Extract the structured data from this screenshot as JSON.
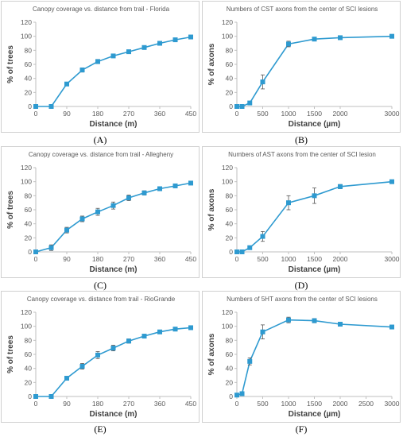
{
  "chart_data": [
    {
      "panel": "(A)",
      "type": "line",
      "title": "Canopy coverage vs. distance from trail - Florida",
      "xlabel": "Distance (m)",
      "ylabel": "% of trees",
      "xlim": [
        0,
        450
      ],
      "ylim": [
        0,
        120
      ],
      "xticks": [
        0,
        90,
        180,
        270,
        360,
        450
      ],
      "yticks": [
        0,
        20,
        40,
        60,
        80,
        100,
        120
      ],
      "grid": false,
      "color": "#2e9ad0",
      "series": [
        {
          "x": [
            0,
            45,
            90,
            135,
            180,
            225,
            270,
            315,
            360,
            405,
            450
          ],
          "y": [
            0,
            0,
            32,
            52,
            64,
            72,
            78,
            84,
            90,
            95,
            99
          ],
          "err": [
            0,
            0,
            2,
            3,
            3,
            2,
            2,
            2,
            2,
            2,
            1
          ]
        }
      ]
    },
    {
      "panel": "(B)",
      "type": "line",
      "title": "Numbers of CST axons from the center of SCI lesions",
      "xlabel": "Distance (µm)",
      "ylabel": "% of axons",
      "xlim": [
        0,
        3000
      ],
      "ylim": [
        0,
        120
      ],
      "xticks": [
        0,
        500,
        1000,
        1500,
        2000,
        3000
      ],
      "yticks": [
        0,
        20,
        40,
        60,
        80,
        100,
        120
      ],
      "grid": false,
      "color": "#2e9ad0",
      "series": [
        {
          "x": [
            0,
            100,
            250,
            500,
            1000,
            1500,
            2000,
            3000
          ],
          "y": [
            0,
            0,
            5,
            35,
            89,
            96,
            98,
            100
          ],
          "err": [
            0,
            0,
            2,
            10,
            4,
            2,
            1,
            0
          ]
        }
      ]
    },
    {
      "panel": "(C)",
      "type": "line",
      "title": "Canopy coverage vs. distance from trail - Allegheny",
      "xlabel": "Distance (m)",
      "ylabel": "% of trees",
      "xlim": [
        0,
        450
      ],
      "ylim": [
        0,
        120
      ],
      "xticks": [
        0,
        90,
        180,
        270,
        360,
        450
      ],
      "yticks": [
        0,
        20,
        40,
        60,
        80,
        100,
        120
      ],
      "grid": false,
      "color": "#2e9ad0",
      "series": [
        {
          "x": [
            0,
            45,
            90,
            135,
            180,
            225,
            270,
            315,
            360,
            405,
            450
          ],
          "y": [
            0,
            6,
            31,
            47,
            57,
            66,
            77,
            84,
            90,
            94,
            98
          ],
          "err": [
            0,
            4,
            4,
            4,
            5,
            5,
            4,
            3,
            2,
            1,
            1
          ]
        }
      ]
    },
    {
      "panel": "(D)",
      "type": "line",
      "title": "Numbers of AST axons from the center of SCI lesion",
      "xlabel": "Distance (µm)",
      "ylabel": "% of axons",
      "xlim": [
        0,
        3000
      ],
      "ylim": [
        0,
        120
      ],
      "xticks": [
        0,
        500,
        1000,
        1500,
        2000,
        3000
      ],
      "yticks": [
        0,
        20,
        40,
        60,
        80,
        100,
        120
      ],
      "grid": false,
      "color": "#2e9ad0",
      "series": [
        {
          "x": [
            0,
            100,
            250,
            500,
            1000,
            1500,
            2000,
            3000
          ],
          "y": [
            0,
            0,
            6,
            22,
            70,
            80,
            93,
            100
          ],
          "err": [
            0,
            0,
            2,
            7,
            10,
            11,
            3,
            0
          ]
        }
      ]
    },
    {
      "panel": "(E)",
      "type": "line",
      "title": "Canopy coverage vs. distance from trail - RioGrande",
      "xlabel": "Distance (m)",
      "ylabel": "% of trees",
      "xlim": [
        0,
        450
      ],
      "ylim": [
        0,
        120
      ],
      "xticks": [
        0,
        90,
        180,
        270,
        360,
        450
      ],
      "yticks": [
        0,
        20,
        40,
        60,
        80,
        100,
        120
      ],
      "grid": false,
      "color": "#2e9ad0",
      "series": [
        {
          "x": [
            0,
            45,
            90,
            135,
            180,
            225,
            270,
            315,
            360,
            405,
            450
          ],
          "y": [
            0,
            0,
            26,
            43,
            59,
            69,
            79,
            86,
            92,
            96,
            98
          ],
          "err": [
            0,
            0,
            2,
            4,
            5,
            4,
            3,
            2,
            2,
            1,
            1
          ]
        }
      ]
    },
    {
      "panel": "(F)",
      "type": "line",
      "title": "Numbers of 5HT axons from the center of SCI lesions",
      "xlabel": "Distance (µm)",
      "ylabel": "% of axons",
      "xlim": [
        0,
        3000
      ],
      "ylim": [
        0,
        120
      ],
      "xticks": [
        0,
        500,
        1000,
        1500,
        2000,
        2500,
        3000
      ],
      "yticks": [
        0,
        20,
        40,
        60,
        80,
        100,
        120
      ],
      "grid": false,
      "color": "#2e9ad0",
      "series": [
        {
          "x": [
            0,
            100,
            250,
            500,
            1000,
            1500,
            2000,
            3000
          ],
          "y": [
            2,
            4,
            50,
            92,
            109,
            108,
            103,
            99
          ],
          "err": [
            0,
            1,
            5,
            10,
            4,
            3,
            2,
            1
          ]
        }
      ]
    }
  ]
}
